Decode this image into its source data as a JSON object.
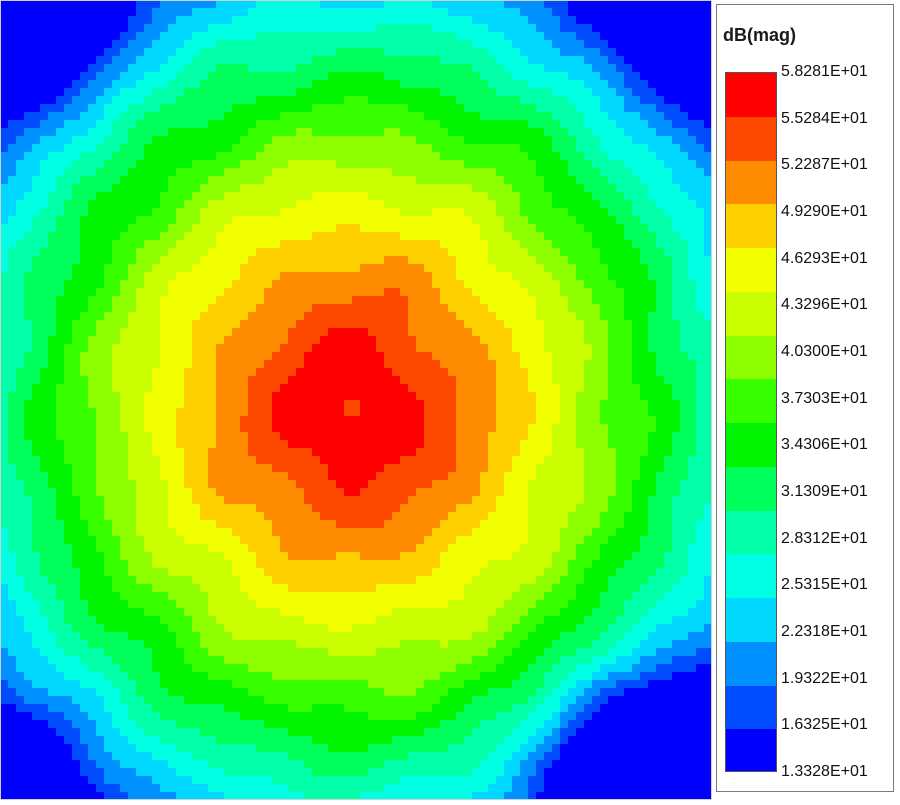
{
  "legend": {
    "title": "dB(mag)"
  },
  "chart_data": {
    "type": "heatmap",
    "title": "",
    "xlabel": "",
    "ylabel": "",
    "colorbar_label": "dB(mag)",
    "levels": [
      "5.8281E+01",
      "5.5284E+01",
      "5.2287E+01",
      "4.9290E+01",
      "4.6293E+01",
      "4.3296E+01",
      "4.0300E+01",
      "3.7303E+01",
      "3.4306E+01",
      "3.1309E+01",
      "2.8312E+01",
      "2.5315E+01",
      "2.2318E+01",
      "1.9322E+01",
      "1.6325E+01",
      "1.3328E+01"
    ],
    "level_colors": [
      "#fe0000",
      "#fe4a00",
      "#fe8b00",
      "#ffd000",
      "#f2ff00",
      "#c9ff00",
      "#8dff00",
      "#37ff00",
      "#00f400",
      "#00ff5a",
      "#00ffa6",
      "#00ffe2",
      "#00d8ff",
      "#0090ff",
      "#004cff",
      "#0000ff"
    ],
    "value_range": [
      13.328,
      58.281
    ],
    "field_description": "Radial field peaking near the center (above the top level at the center), falling off toward the edges, with low minima at the bottom-right and top-left corners.",
    "peak_value": 58.281,
    "corner_minimum_value": 13.328
  }
}
